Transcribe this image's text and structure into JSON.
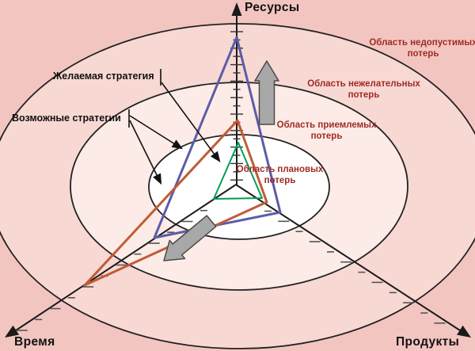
{
  "axes": {
    "resources": "Ресурсы",
    "time": "Время",
    "products": "Продукты"
  },
  "regions": {
    "unacceptable": {
      "line1": "Область недопустимых",
      "line2": "потерь"
    },
    "undesirable": {
      "line1": "Область нежелательных",
      "line2": "потерь"
    },
    "acceptable": {
      "line1": "Область приемлемых",
      "line2": "потерь"
    },
    "planned": {
      "line1": "Область плановых",
      "line2": "потерь"
    }
  },
  "strategies": {
    "desired": {
      "label": "Желаемая стратегия"
    },
    "possible": {
      "label": "Возможные стратегии"
    }
  },
  "colors": {
    "bg_unacceptable": "#f3c5c1",
    "ring_undesirable": "#f8d8d3",
    "ring_acceptable": "#fcebe6",
    "ring_planned": "#ffffff",
    "triangle_desired_green": "#009e54",
    "triangle_possible_blue": "#5c5ca8",
    "triangle_possible_orange": "#c05c36",
    "region_label_text": "#9e2b26",
    "block_arrow_fill": "#a8a8a8",
    "axis_line": "#1a1a1a"
  }
}
